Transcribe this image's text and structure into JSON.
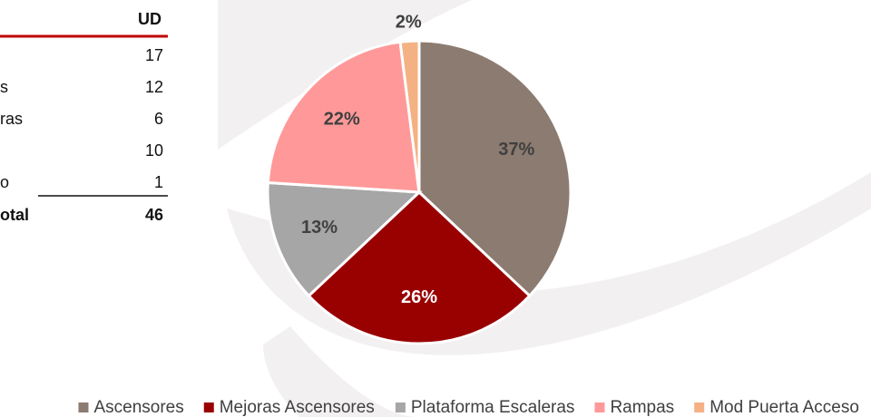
{
  "table": {
    "header": "UD",
    "rows": [
      {
        "value": 17
      },
      {
        "label": "s",
        "value": 12
      },
      {
        "label": "ras",
        "value": 6
      },
      {
        "value": 10
      },
      {
        "label": "o",
        "value": 1
      }
    ],
    "total": {
      "label": "otal",
      "value": 46
    }
  },
  "chart_data": {
    "type": "pie",
    "categories": [
      "Ascensores",
      "Mejoras Ascensores",
      "Plataforma Escaleras",
      "Rampas",
      "Mod Puerta Acceso"
    ],
    "values": [
      37,
      26,
      13,
      22,
      2
    ],
    "value_labels": [
      "37%",
      "26%",
      "13%",
      "22%",
      "2%"
    ],
    "colors": [
      "#8c7b70",
      "#990000",
      "#a6a6a6",
      "#ff9999",
      "#f4b183"
    ],
    "label_colors": [
      "#404040",
      "#ffffff",
      "#404040",
      "#404040",
      "#404040"
    ],
    "legend": "bottom"
  }
}
